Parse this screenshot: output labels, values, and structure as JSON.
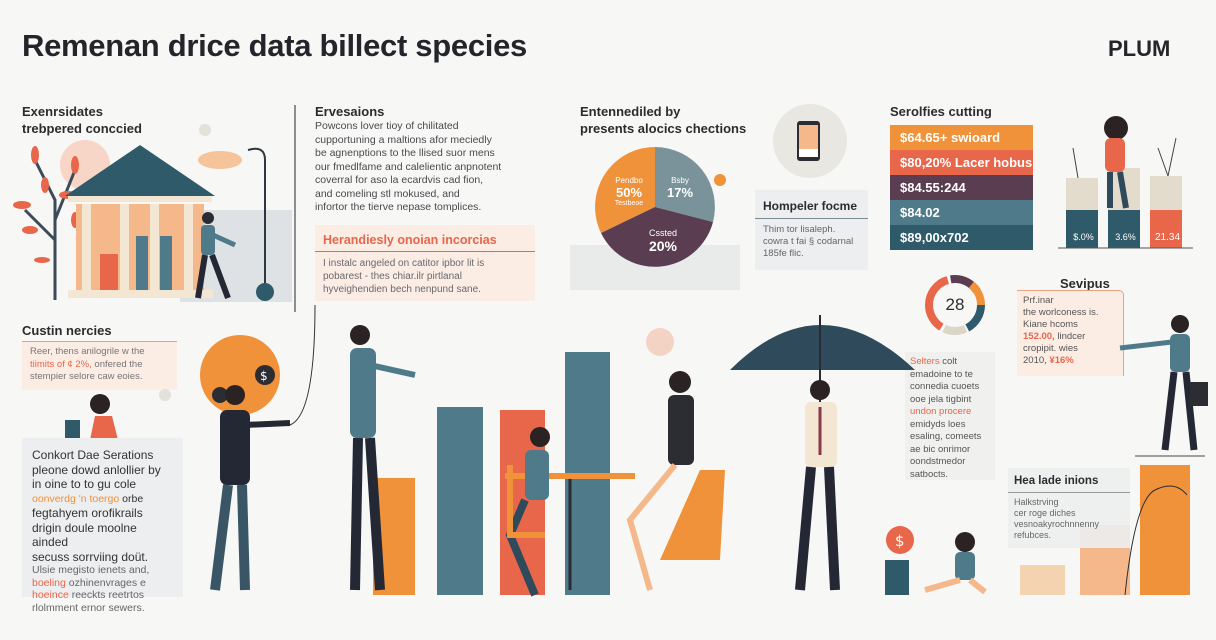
{
  "header": {
    "title": "Remenan drice data billect species",
    "brand": "PLUM"
  },
  "section1": {
    "heading_line1": "Exenrsidates",
    "heading_line2": "trebpered conccied"
  },
  "section2": {
    "heading": "Ervesaions",
    "body": [
      "Powcons lover tioy of chilitated",
      "cupportuning a maltions afor meciedly",
      "be agnenptions to the llised suor mens",
      "our fmedlfame and calelientic anpnotent",
      "coverral for aso la ecardvis cad fion,",
      "and comeling stl mokused, and",
      "infortor the tierve nepase tomplices."
    ],
    "callout": {
      "heading": "Herandiesly onoian incorcias",
      "body": [
        "I instalc angeled on catitor ipbor lit is",
        "pobarest - thes chiar.ilr pirtlanal",
        "hyveighendien bech nenpund sane."
      ]
    }
  },
  "section3": {
    "heading_line1": "Entennediled by",
    "heading_line2": "presents alocics chections",
    "chart_data": {
      "type": "pie",
      "slices": [
        {
          "label": "Pendbo",
          "sublabel": "Testbeoe",
          "value_text": "50%",
          "color": "#f0923a"
        },
        {
          "label": "Bsby",
          "value_text": "17%",
          "color": "#7a939b"
        },
        {
          "label": "Cssted",
          "value_text": "20%",
          "color": "#5a3d50"
        }
      ]
    }
  },
  "phone_card": {
    "heading": "Hompeler focme",
    "body": [
      "Thim tor lisaleph.",
      "cowra t fai § codarnal",
      "185fe flic."
    ]
  },
  "cutting": {
    "heading": "Serolfies cutting",
    "rows": [
      {
        "text": "$64.65+ swioard",
        "color": "#f0923a"
      },
      {
        "text": "$80,20% Lacer hobus",
        "color": "#e8664a"
      },
      {
        "text": "$84.55:244",
        "color": "#5a3d50"
      },
      {
        "text": "$84.02",
        "color": "#4e7a8a"
      },
      {
        "text": "$89,00x702",
        "color": "#2f5a6a"
      }
    ]
  },
  "podium": {
    "labels": [
      "$.0%",
      "3.6%",
      "21.34"
    ]
  },
  "donut": {
    "value": "28"
  },
  "sevipus": {
    "heading": "Sevipus",
    "lines": [
      "Prf.inar",
      "the worlconess is.",
      "Kiane       hcoms"
    ],
    "highlight1": "152.00,",
    "line4_rest": "lindcer",
    "line5": "cropipit. wies",
    "line6_prefix": "2010,",
    "highlight2": "¥16%"
  },
  "side_note": {
    "lead": "Selters",
    "lead_rest": "colt",
    "lines": [
      "emadoine to te",
      "connedia cuoets",
      "ooe jela tigbint"
    ],
    "highlight": "undon procere",
    "lines2": [
      "emidyds loes",
      "esaling, comeets",
      "ae  bic onrimor",
      "oondstmedor",
      "satbocts."
    ]
  },
  "hea_box": {
    "heading": "Hea lade inions",
    "body": [
      "Halkstrving",
      "cer roge diches",
      "vesnoakyrochnnenny",
      "refubces."
    ]
  },
  "custin": {
    "heading": "Custin nercies",
    "body_line1": "Reer, thens anilogrile w the",
    "body_hl": "tiimits of ¢ 2%,",
    "body_line2_rest": "onfered the",
    "body_line3": "stempier selore caw eoies."
  },
  "conkort": {
    "heading": "Conkort Dae Serations",
    "lines": [
      "pleone dowd anlollier by",
      "in oine to to gu cole"
    ],
    "hl1": "oonverdg 'n toergo",
    "hl1_rest": "orbe",
    "lines2": [
      "fegtahyem orofikrails",
      "drigin doule moolne ainded",
      "secuss sorrviing doüt."
    ],
    "small": [
      "Ulsie megisto ienets and,"
    ],
    "hl2": "boeling",
    "hl2_rest": "ozhinenvrages e",
    "hl3": "hoeince",
    "hl3_rest": "reeckts reetrtos",
    "small_last": "rlolmment ernor sewers."
  },
  "colors": {
    "orange": "#f0923a",
    "coral": "#e8664a",
    "plum": "#5a3d50",
    "teal": "#4e7a8a",
    "dark_teal": "#2f5a6a"
  }
}
